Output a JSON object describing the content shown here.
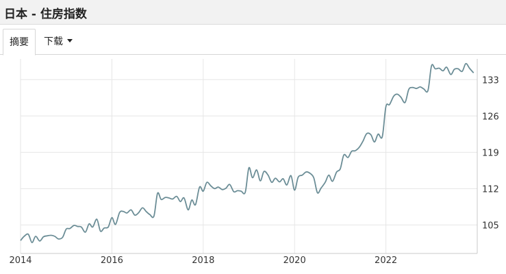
{
  "window": {
    "title": "日本 - 住房指数"
  },
  "tabs": [
    {
      "label": "摘要"
    },
    {
      "label": "下载"
    }
  ],
  "colors": {
    "line": "#6b8d96",
    "grid": "#e6e6e6",
    "axis": "#c8c8c8"
  },
  "chart_data": {
    "type": "line",
    "title": "",
    "xlabel": "",
    "ylabel": "",
    "x_ticks": [
      "2014",
      "2016",
      "2018",
      "2020",
      "2022"
    ],
    "y_ticks": [
      105,
      112,
      119,
      126,
      133
    ],
    "xlim": [
      2014.0,
      2024.0
    ],
    "ylim": [
      99.5,
      137.0
    ],
    "grid": true,
    "y_axis_position": "right",
    "series": [
      {
        "x": [
          2014.0,
          2014.08,
          2014.17,
          2014.25,
          2014.33,
          2014.42,
          2014.5,
          2014.58,
          2014.67,
          2014.75,
          2014.83,
          2014.92,
          2015.0,
          2015.08,
          2015.17,
          2015.25,
          2015.33,
          2015.42,
          2015.5,
          2015.58,
          2015.67,
          2015.75,
          2015.83,
          2015.92,
          2016.0,
          2016.08,
          2016.17,
          2016.25,
          2016.33,
          2016.42,
          2016.5,
          2016.58,
          2016.67,
          2016.75,
          2016.83,
          2016.92,
          2017.0,
          2017.08,
          2017.17,
          2017.25,
          2017.33,
          2017.42,
          2017.5,
          2017.58,
          2017.67,
          2017.75,
          2017.83,
          2017.92,
          2018.0,
          2018.08,
          2018.17,
          2018.25,
          2018.33,
          2018.42,
          2018.5,
          2018.58,
          2018.67,
          2018.75,
          2018.83,
          2018.92,
          2019.0,
          2019.08,
          2019.17,
          2019.25,
          2019.33,
          2019.42,
          2019.5,
          2019.58,
          2019.67,
          2019.75,
          2019.83,
          2019.92,
          2020.0,
          2020.08,
          2020.17,
          2020.25,
          2020.33,
          2020.42,
          2020.5,
          2020.58,
          2020.67,
          2020.75,
          2020.83,
          2020.92,
          2021.0,
          2021.08,
          2021.17,
          2021.25,
          2021.33,
          2021.42,
          2021.5,
          2021.58,
          2021.67,
          2021.75,
          2021.83,
          2021.92,
          2022.0,
          2022.08,
          2022.17,
          2022.25,
          2022.33,
          2022.42,
          2022.5,
          2022.58,
          2022.67,
          2022.75,
          2022.83,
          2022.92,
          2023.0,
          2023.08,
          2023.17,
          2023.25,
          2023.33,
          2023.42,
          2023.5,
          2023.58,
          2023.67,
          2023.75,
          2023.83,
          2023.92
        ],
        "values": [
          102.0,
          102.8,
          103.2,
          101.6,
          102.8,
          101.9,
          102.7,
          102.9,
          103.0,
          102.8,
          102.3,
          102.6,
          104.2,
          104.3,
          104.9,
          104.7,
          104.6,
          103.6,
          105.2,
          104.6,
          106.1,
          103.8,
          104.4,
          104.6,
          106.4,
          105.1,
          107.4,
          107.6,
          107.3,
          107.9,
          106.9,
          107.3,
          108.3,
          107.6,
          107.0,
          106.7,
          111.1,
          109.9,
          110.3,
          110.2,
          110.0,
          110.5,
          109.5,
          110.2,
          107.9,
          109.8,
          108.9,
          112.3,
          111.5,
          113.2,
          112.5,
          112.0,
          112.3,
          111.8,
          112.1,
          112.8,
          111.4,
          111.6,
          111.5,
          111.3,
          116.0,
          114.1,
          115.6,
          113.5,
          115.3,
          114.6,
          113.2,
          114.0,
          113.3,
          113.9,
          112.7,
          114.5,
          111.7,
          114.2,
          114.6,
          115.2,
          115.0,
          114.1,
          111.2,
          112.1,
          113.2,
          114.6,
          113.4,
          115.2,
          115.8,
          118.5,
          118.0,
          119.2,
          119.3,
          120.0,
          121.2,
          122.6,
          122.4,
          121.0,
          122.5,
          122.0,
          127.8,
          128.2,
          129.8,
          130.2,
          129.6,
          128.6,
          131.1,
          131.5,
          131.3,
          131.6,
          131.2,
          130.9,
          135.7,
          135.1,
          135.2,
          134.7,
          135.4,
          134.0,
          135.0,
          135.1,
          134.6,
          136.1,
          135.2,
          134.3
        ]
      }
    ]
  }
}
